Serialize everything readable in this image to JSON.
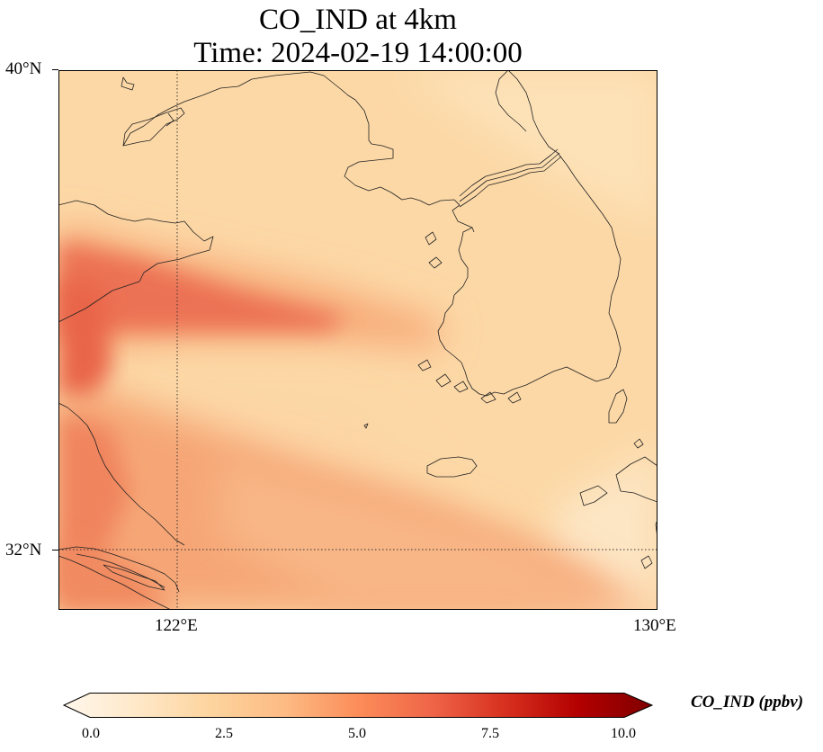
{
  "title": "CO_IND at 4km",
  "subtitle": "Time: 2024-02-19 14:00:00",
  "map": {
    "lat_labels": [
      "40°N",
      "32°N"
    ],
    "lon_labels": [
      "122°E",
      "130°E"
    ],
    "gridline_style": "dotted",
    "projection": "lat-lon"
  },
  "colorbar": {
    "label": "CO_IND (ppbv)",
    "colormap": "OrRd",
    "min": 0.0,
    "max": 10.0,
    "extend": "both",
    "ticks": [
      "0.0",
      "2.5",
      "5.0",
      "7.5",
      "10.0"
    ],
    "colors": [
      "#fff7ec",
      "#fdd49e",
      "#fdbb84",
      "#fc8d59",
      "#ef6548",
      "#d7301f",
      "#b30000",
      "#7f0000"
    ]
  },
  "field_colors": {
    "background": "#fdd9a9",
    "plume_core": "#ea6a4c",
    "plume_mid": "#f6a273",
    "low": "#fde3bf",
    "coast": "#222222"
  }
}
